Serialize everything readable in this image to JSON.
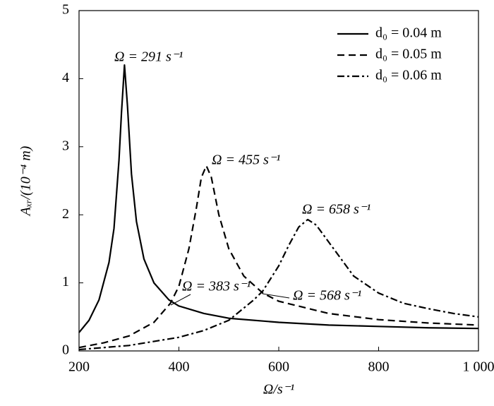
{
  "chart_data": {
    "type": "line",
    "x_label": "Ω/s⁻¹",
    "y_label": "Aₓᵣ/(10⁻⁴ m)",
    "xlim": [
      200,
      1000
    ],
    "ylim": [
      0,
      5
    ],
    "xticks": [
      200,
      400,
      600,
      800,
      {
        "value": 1000,
        "label": "1 000"
      }
    ],
    "yticks": [
      0,
      1,
      2,
      3,
      4,
      5
    ],
    "legend": "upper right",
    "series": [
      {
        "name": "d₀ = 0.04 m",
        "color": "#000000",
        "linestyle": "solid",
        "x": [
          200,
          220,
          240,
          260,
          270,
          280,
          285,
          291,
          297,
          305,
          315,
          330,
          350,
          380,
          400,
          450,
          500,
          600,
          700,
          800,
          900,
          1000
        ],
        "values": [
          0.27,
          0.45,
          0.75,
          1.3,
          1.8,
          2.8,
          3.5,
          4.2,
          3.6,
          2.6,
          1.9,
          1.35,
          1.0,
          0.75,
          0.66,
          0.55,
          0.48,
          0.42,
          0.38,
          0.36,
          0.34,
          0.33
        ]
      },
      {
        "name": "d₀ = 0.05 m",
        "color": "#000000",
        "linestyle": "dashed",
        "x": [
          200,
          250,
          300,
          350,
          383,
          400,
          420,
          435,
          445,
          455,
          465,
          480,
          500,
          530,
          568,
          600,
          700,
          800,
          900,
          1000
        ],
        "values": [
          0.05,
          0.12,
          0.22,
          0.42,
          0.7,
          0.95,
          1.5,
          2.1,
          2.55,
          2.72,
          2.55,
          2.0,
          1.5,
          1.1,
          0.85,
          0.73,
          0.55,
          0.46,
          0.41,
          0.38
        ]
      },
      {
        "name": "d₀ = 0.06 m",
        "color": "#000000",
        "linestyle": "dashdot",
        "x": [
          200,
          300,
          400,
          450,
          500,
          550,
          568,
          600,
          620,
          640,
          658,
          675,
          700,
          750,
          800,
          850,
          900,
          950,
          1000
        ],
        "values": [
          0.02,
          0.08,
          0.2,
          0.3,
          0.45,
          0.75,
          0.88,
          1.25,
          1.55,
          1.82,
          1.93,
          1.85,
          1.6,
          1.1,
          0.85,
          0.7,
          0.62,
          0.55,
          0.5
        ]
      }
    ],
    "annotations": [
      "Ω = 291 s⁻¹",
      "Ω = 455 s⁻¹",
      "Ω = 658 s⁻¹",
      "Ω = 383 s⁻¹",
      "Ω = 568 s⁻¹"
    ]
  }
}
